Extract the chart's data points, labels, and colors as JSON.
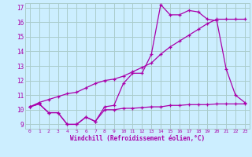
{
  "title": "",
  "xlabel": "Windchill (Refroidissement éolien,°C)",
  "ylabel": "",
  "xlim": [
    -0.5,
    23.5
  ],
  "ylim": [
    8.7,
    17.3
  ],
  "yticks": [
    9,
    10,
    11,
    12,
    13,
    14,
    15,
    16,
    17
  ],
  "xticks": [
    0,
    1,
    2,
    3,
    4,
    5,
    6,
    7,
    8,
    9,
    10,
    11,
    12,
    13,
    14,
    15,
    16,
    17,
    18,
    19,
    20,
    21,
    22,
    23
  ],
  "bg_color": "#cceeff",
  "grid_color": "#aacccc",
  "line_color": "#aa00aa",
  "series1_x": [
    0,
    1,
    2,
    3,
    4,
    5,
    6,
    7,
    8,
    9,
    10,
    11,
    12,
    13,
    14,
    15,
    16,
    17,
    18,
    19,
    20,
    21,
    22,
    23
  ],
  "series1_y": [
    10.2,
    10.4,
    9.8,
    9.8,
    9.0,
    9.0,
    9.5,
    9.2,
    10.0,
    10.0,
    10.1,
    10.1,
    10.15,
    10.2,
    10.2,
    10.3,
    10.3,
    10.35,
    10.35,
    10.35,
    10.4,
    10.4,
    10.4,
    10.4
  ],
  "series2_x": [
    0,
    1,
    2,
    3,
    4,
    5,
    6,
    7,
    8,
    9,
    10,
    11,
    12,
    13,
    14,
    15,
    16,
    17,
    18,
    19,
    20,
    21,
    22,
    23
  ],
  "series2_y": [
    10.2,
    10.5,
    10.7,
    10.9,
    11.1,
    11.2,
    11.5,
    11.8,
    12.0,
    12.1,
    12.3,
    12.6,
    12.9,
    13.2,
    13.8,
    14.3,
    14.7,
    15.1,
    15.5,
    15.9,
    16.2,
    16.2,
    16.2,
    16.2
  ],
  "series3_x": [
    0,
    1,
    2,
    3,
    4,
    5,
    6,
    7,
    8,
    9,
    10,
    11,
    12,
    13,
    14,
    15,
    16,
    17,
    18,
    19,
    20,
    21,
    22,
    23
  ],
  "series3_y": [
    10.2,
    10.4,
    9.8,
    9.8,
    9.0,
    9.0,
    9.5,
    9.2,
    10.2,
    10.3,
    11.8,
    12.5,
    12.5,
    13.8,
    17.2,
    16.5,
    16.5,
    16.8,
    16.7,
    16.2,
    16.1,
    12.8,
    11.0,
    10.5
  ]
}
